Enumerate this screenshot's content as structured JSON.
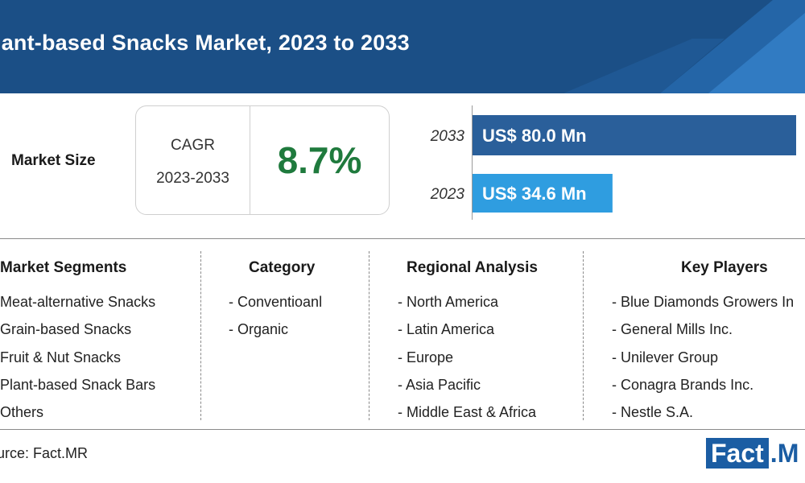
{
  "header": {
    "title": "lant-based Snacks Market, 2023 to 2033",
    "colors": {
      "band": "#1b4f86",
      "accent": "#2b78c2"
    }
  },
  "market_size": {
    "label": "Market Size",
    "cagr_label": "CAGR",
    "cagr_period": "2023-2033",
    "cagr_value": "8.7%",
    "cagr_color": "#1f7a3d"
  },
  "chart_data": {
    "type": "bar",
    "orientation": "horizontal",
    "categories": [
      "2033",
      "2023"
    ],
    "values": [
      80.0,
      34.6
    ],
    "data_labels": [
      "US$ 80.0 Mn",
      "US$ 34.6 Mn"
    ],
    "colors": [
      "#2a5f9a",
      "#2f9de0"
    ],
    "title": "",
    "xlabel": "",
    "ylabel": "",
    "xlim": [
      0,
      80.0
    ],
    "grid": false
  },
  "segments": [
    {
      "heading": "Market Segments",
      "items": [
        "Meat-alternative Snacks",
        "Grain-based Snacks",
        "Fruit & Nut Snacks",
        "Plant-based Snack Bars",
        "Others"
      ]
    },
    {
      "heading": "Category",
      "items": [
        "- Conventioanl",
        "- Organic"
      ]
    },
    {
      "heading": "Regional Analysis",
      "items": [
        "- North America",
        "- Latin America",
        "- Europe",
        "- Asia Pacific",
        "- Middle East & Africa"
      ]
    },
    {
      "heading": "Key Players",
      "items": [
        "- Blue Diamonds Growers In",
        "- General Mills Inc.",
        "- Unilever Group",
        "- Conagra Brands Inc.",
        "- Nestle S.A."
      ]
    }
  ],
  "footer": {
    "source": "urce: Fact.MR",
    "logo_left": "Fact",
    "logo_right": ".M"
  }
}
